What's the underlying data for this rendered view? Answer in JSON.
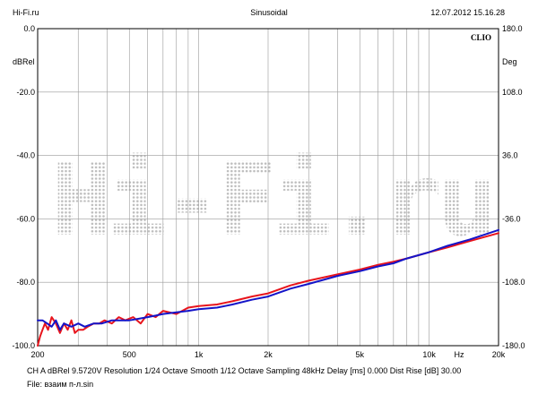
{
  "header": {
    "left": "Hi-Fi.ru",
    "center": "Sinusoidal",
    "right": "12.07.2012 15.16.28"
  },
  "brand": {
    "clio": "CLIO",
    "watermark": "Hi-Fi.ru"
  },
  "footer": {
    "settings": "CH A   dBRel 9.5720V   Resolution 1/24 Octave   Smooth 1/12 Octave   Sampling 48kHz   Delay [ms] 0.000   Dist Rise [dB] 30.00",
    "file": "File: взаим п-л.sin"
  },
  "chart_data": {
    "type": "line",
    "title": "Sinusoidal",
    "xscale": "log",
    "xlim": [
      200,
      20000
    ],
    "ylim": [
      -100,
      0
    ],
    "y2lim": [
      -180,
      180
    ],
    "xlabel": "Hz",
    "ylabel": "dBRel",
    "y2label": "Deg",
    "grid": true,
    "x_ticks": [
      {
        "value": 200,
        "label": "200"
      },
      {
        "value": 500,
        "label": "500"
      },
      {
        "value": 1000,
        "label": "1k"
      },
      {
        "value": 2000,
        "label": "2k"
      },
      {
        "value": 5000,
        "label": "5k"
      },
      {
        "value": 10000,
        "label": "10k"
      },
      {
        "value": 20000,
        "label": "20k"
      }
    ],
    "y_ticks": [
      {
        "value": 0,
        "label": "0.0"
      },
      {
        "value": -20,
        "label": "-20.0"
      },
      {
        "value": -40,
        "label": "-40.0"
      },
      {
        "value": -60,
        "label": "-60.0"
      },
      {
        "value": -80,
        "label": "-80.0"
      },
      {
        "value": -100,
        "label": "-100.0"
      }
    ],
    "y2_ticks": [
      {
        "value": 180,
        "label": "180.0"
      },
      {
        "value": 108,
        "label": "108.0"
      },
      {
        "value": 36,
        "label": "36.0"
      },
      {
        "value": -36,
        "label": "-36.0"
      },
      {
        "value": -108,
        "label": "-108.0"
      },
      {
        "value": -180,
        "label": "-180.0"
      }
    ],
    "series": [
      {
        "color": "#e8141c",
        "x": [
          200,
          205,
          210,
          215,
          222,
          230,
          240,
          250,
          260,
          270,
          280,
          290,
          300,
          315,
          330,
          350,
          370,
          390,
          420,
          450,
          480,
          520,
          560,
          600,
          650,
          700,
          800,
          900,
          1000,
          1200,
          1400,
          1700,
          2000,
          2500,
          3000,
          4000,
          5000,
          6000,
          7000,
          8000,
          10000,
          12000,
          15000,
          20000
        ],
        "values": [
          -100,
          -97,
          -95,
          -93,
          -95,
          -91,
          -93,
          -96,
          -93,
          -95,
          -92,
          -96,
          -95,
          -95,
          -94,
          -93,
          -93,
          -92,
          -93,
          -91,
          -92,
          -91,
          -93,
          -90,
          -91,
          -89,
          -90,
          -88,
          -87.5,
          -87,
          -86,
          -84.5,
          -83.5,
          -81,
          -79.5,
          -77.5,
          -76,
          -74.5,
          -73.5,
          -72.5,
          -70.5,
          -69,
          -67,
          -64.5
        ]
      },
      {
        "color": "#1414c8",
        "x": [
          200,
          210,
          220,
          230,
          240,
          250,
          260,
          280,
          300,
          320,
          350,
          380,
          420,
          460,
          500,
          550,
          600,
          650,
          700,
          800,
          900,
          1000,
          1200,
          1400,
          1700,
          2000,
          2500,
          3000,
          4000,
          5000,
          6000,
          7000,
          8000,
          10000,
          12000,
          15000,
          20000
        ],
        "values": [
          -92,
          -92,
          -93,
          -94,
          -92,
          -95,
          -93,
          -94,
          -93,
          -94,
          -93,
          -93,
          -92,
          -92,
          -92,
          -91.5,
          -91,
          -90.5,
          -90,
          -89.5,
          -89,
          -88.5,
          -88,
          -87,
          -85.5,
          -84.5,
          -82,
          -80.5,
          -78,
          -76.5,
          -75,
          -74,
          -72.5,
          -70.5,
          -68.5,
          -66.5,
          -63.5
        ]
      }
    ]
  }
}
